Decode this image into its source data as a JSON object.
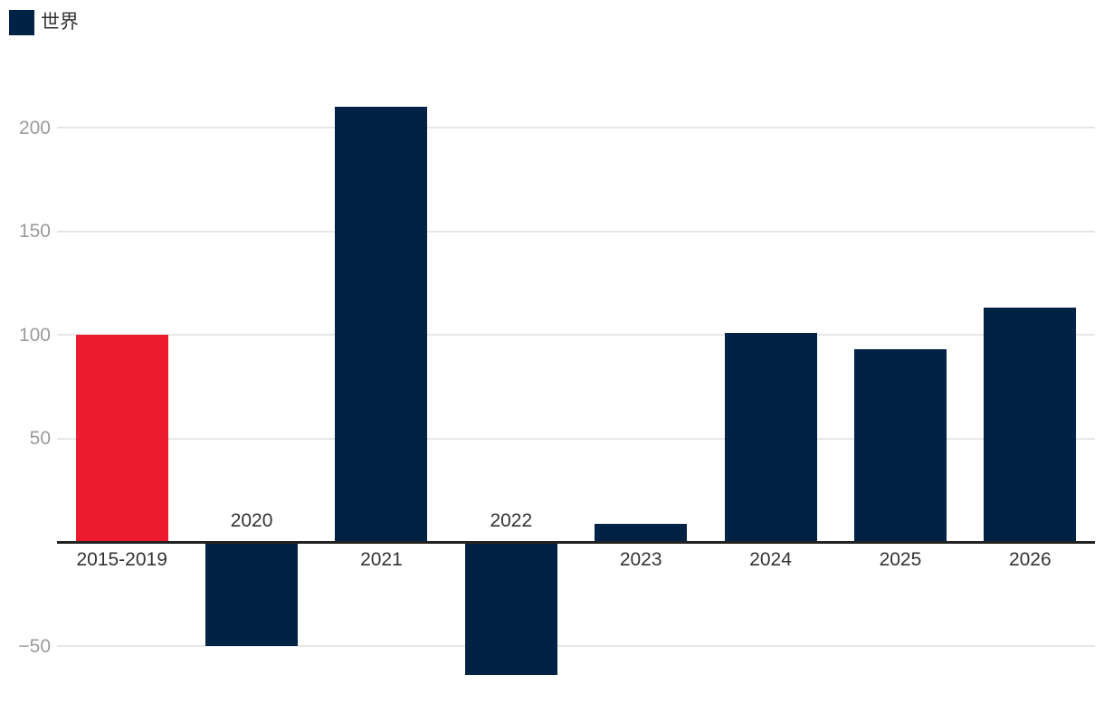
{
  "legend": {
    "items": [
      {
        "label": "世界",
        "color": "#002244"
      }
    ]
  },
  "chart_data": {
    "type": "bar",
    "title": "",
    "categories": [
      "2015-2019",
      "2020",
      "2021",
      "2022",
      "2023",
      "2024",
      "2025",
      "2026"
    ],
    "series": [
      {
        "name": "世界",
        "values": [
          100,
          -50,
          210,
          -64,
          9,
          101,
          93,
          113
        ]
      }
    ],
    "bar_colors": [
      "#ed1c2e",
      "#002244",
      "#002244",
      "#002244",
      "#002244",
      "#002244",
      "#002244",
      "#002244"
    ],
    "yticks": [
      {
        "value": 200,
        "label": "200"
      },
      {
        "value": 150,
        "label": "150"
      },
      {
        "value": 100,
        "label": "100"
      },
      {
        "value": 50,
        "label": "50"
      },
      {
        "value": -50,
        "label": "−50"
      }
    ],
    "ylim": [
      -87,
      262
    ],
    "grid": "horizontal",
    "legend_position": "top-left",
    "colors": {
      "bar_default": "#002244",
      "bar_highlight": "#ed1c2e",
      "axis_line": "#222222",
      "gridline": "#e7e7e7",
      "ytick_text": "#9b9b9b",
      "xlabel_text": "#333333"
    }
  }
}
